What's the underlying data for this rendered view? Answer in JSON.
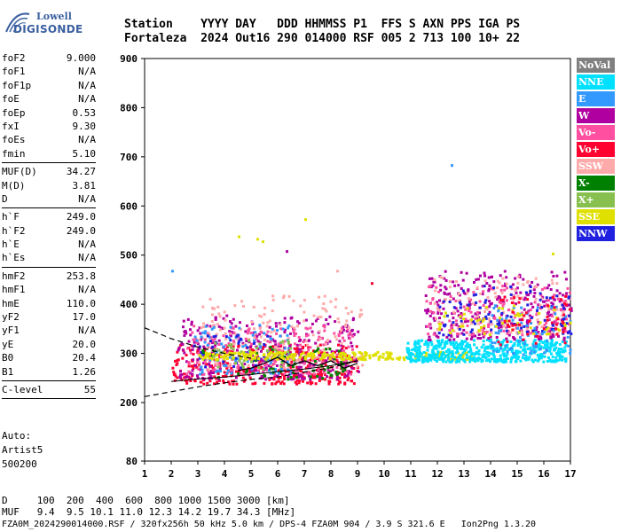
{
  "logo": {
    "line1": "Lowell",
    "line2": "DIGISONDE"
  },
  "header": {
    "row1": "Station    YYYY DAY   DDD HHMMSS P1  FFS S AXN PPS IGA PS",
    "row2": "Fortaleza  2024 Out16 290 014000 RSF 005 2 713 100 10+ 22"
  },
  "params": [
    {
      "label": "foF2",
      "value": "9.000"
    },
    {
      "label": "foF1",
      "value": "N/A"
    },
    {
      "label": "foF1p",
      "value": "N/A"
    },
    {
      "label": "foE",
      "value": "N/A"
    },
    {
      "label": "foEp",
      "value": "0.53"
    },
    {
      "label": "fxI",
      "value": "9.30"
    },
    {
      "label": "foEs",
      "value": "N/A"
    },
    {
      "label": "fmin",
      "value": "5.10"
    },
    {
      "sep": true
    },
    {
      "label": "MUF(D)",
      "value": "34.27"
    },
    {
      "label": "M(D)",
      "value": "3.81"
    },
    {
      "label": "D",
      "value": "N/A"
    },
    {
      "sep": true
    },
    {
      "label": "h`F",
      "value": "249.0"
    },
    {
      "label": "h`F2",
      "value": "249.0"
    },
    {
      "label": "h`E",
      "value": "N/A"
    },
    {
      "label": "h`Es",
      "value": "N/A"
    },
    {
      "sep": true
    },
    {
      "label": "hmF2",
      "value": "253.8"
    },
    {
      "label": "hmF1",
      "value": "N/A"
    },
    {
      "label": "hmE",
      "value": "110.0"
    },
    {
      "label": "yF2",
      "value": "17.0"
    },
    {
      "label": "yF1",
      "value": "N/A"
    },
    {
      "label": "yE",
      "value": "20.0"
    },
    {
      "label": "B0",
      "value": "20.4"
    },
    {
      "label": "B1",
      "value": "1.26"
    },
    {
      "sep": true
    },
    {
      "label": "C-level",
      "value": "55"
    },
    {
      "sep": true
    }
  ],
  "auto": {
    "l1": "Auto:",
    "l2": "Artist5",
    "l3": "500200"
  },
  "legend": [
    {
      "label": "NoVal",
      "color": "#808080"
    },
    {
      "label": "NNE",
      "color": "#00e0ff"
    },
    {
      "label": "E",
      "color": "#3399ff"
    },
    {
      "label": "W",
      "color": "#b000a0"
    },
    {
      "label": "Vo-",
      "color": "#ff4fa0"
    },
    {
      "label": "Vo+",
      "color": "#ff0030"
    },
    {
      "label": "SSW",
      "color": "#ffaaaa"
    },
    {
      "label": "X-",
      "color": "#008000"
    },
    {
      "label": "X+",
      "color": "#88c050"
    },
    {
      "label": "SSE",
      "color": "#e0e000"
    },
    {
      "label": "NNW",
      "color": "#2020e0"
    }
  ],
  "muf_table": {
    "row1": "D     100  200  400  600  800 1000 1500 3000 [km]",
    "row2": "MUF   9.4  9.5 10.1 11.0 12.3 14.2 19.7 34.3 [MHz]"
  },
  "footer": "FZA0M_2024290014000.RSF / 320fx256h 50 kHz 5.0 km / DPS-4 FZA0M 904 / 3.9 S 321.6 E   Ion2Png 1.3.20",
  "chart_data": {
    "type": "scatter",
    "title": "",
    "xlabel": "",
    "ylabel": "",
    "xlim": [
      1,
      17
    ],
    "ylim": [
      80,
      900
    ],
    "xticks": [
      "1",
      "2",
      "3",
      "4",
      "5",
      "6",
      "7",
      "8",
      "9",
      "10",
      "11",
      "12",
      "13",
      "14",
      "15",
      "16",
      "17"
    ],
    "yticks": [
      {
        "v": 900,
        "label": "900"
      },
      {
        "v": 800,
        "label": "800"
      },
      {
        "v": 700,
        "label": "700"
      },
      {
        "v": 600,
        "label": "600"
      },
      {
        "v": 500,
        "label": "500"
      },
      {
        "v": 400,
        "label": "400"
      },
      {
        "v": 300,
        "label": "300"
      },
      {
        "v": 200,
        "label": "200"
      },
      {
        "v": 80,
        "label": "80"
      }
    ],
    "clusters": [
      {
        "color": "#ff0030",
        "f": [
          2.0,
          9.0
        ],
        "h": [
          240,
          320
        ],
        "n": 380
      },
      {
        "color": "#b000a0",
        "f": [
          2.2,
          9.0
        ],
        "h": [
          250,
          380
        ],
        "n": 320
      },
      {
        "color": "#ff4fa0",
        "f": [
          2.5,
          8.8
        ],
        "h": [
          260,
          360
        ],
        "n": 220
      },
      {
        "color": "#ffaaaa",
        "f": [
          3.0,
          9.2
        ],
        "h": [
          270,
          420
        ],
        "n": 160
      },
      {
        "color": "#3399ff",
        "f": [
          2.8,
          6.5
        ],
        "h": [
          260,
          360
        ],
        "n": 90
      },
      {
        "color": "#2020e0",
        "f": [
          2.8,
          6.0
        ],
        "h": [
          270,
          340
        ],
        "n": 40
      },
      {
        "color": "#008000",
        "f": [
          3.0,
          8.5
        ],
        "h": [
          250,
          320
        ],
        "n": 60
      },
      {
        "color": "#88c050",
        "f": [
          3.5,
          6.5
        ],
        "h": [
          270,
          330
        ],
        "n": 50
      },
      {
        "color": "#e0e000",
        "f": [
          3.0,
          13.5
        ],
        "h": [
          290,
          305
        ],
        "n": 260
      },
      {
        "color": "#00e0ff",
        "f": [
          10.8,
          16.8
        ],
        "h": [
          285,
          330
        ],
        "n": 520
      },
      {
        "color": "#b000a0",
        "f": [
          11.5,
          17.0
        ],
        "h": [
          330,
          470
        ],
        "n": 280
      },
      {
        "color": "#ff4fa0",
        "f": [
          11.5,
          17.0
        ],
        "h": [
          340,
          440
        ],
        "n": 140
      },
      {
        "color": "#ffaaaa",
        "f": [
          11.8,
          17.0
        ],
        "h": [
          340,
          460
        ],
        "n": 110
      },
      {
        "color": "#2020e0",
        "f": [
          12.0,
          17.0
        ],
        "h": [
          340,
          440
        ],
        "n": 90
      },
      {
        "color": "#3399ff",
        "f": [
          14.0,
          17.0
        ],
        "h": [
          300,
          400
        ],
        "n": 70
      },
      {
        "color": "#e0e000",
        "f": [
          12.0,
          17.0
        ],
        "h": [
          340,
          400
        ],
        "n": 60
      },
      {
        "color": "#ff0030",
        "f": [
          14.0,
          17.0
        ],
        "h": [
          320,
          420
        ],
        "n": 50
      }
    ],
    "trace_solid": [
      [
        2.0,
        243
      ],
      [
        3.0,
        248
      ],
      [
        4.0,
        252
      ],
      [
        5.0,
        257
      ],
      [
        6.0,
        263
      ],
      [
        7.0,
        268
      ],
      [
        8.0,
        275
      ],
      [
        9.0,
        285
      ]
    ],
    "trace_dashed_low": [
      [
        1.0,
        212
      ],
      [
        2.0,
        222
      ],
      [
        3.0,
        232
      ],
      [
        4.0,
        240
      ],
      [
        5.0,
        247
      ],
      [
        6.0,
        252
      ],
      [
        7.0,
        262
      ],
      [
        8.0,
        271
      ],
      [
        9.0,
        285
      ]
    ],
    "trace_dashed_high": [
      [
        1.0,
        352
      ],
      [
        2.0,
        330
      ],
      [
        3.0,
        313
      ],
      [
        4.0,
        300
      ],
      [
        5.0,
        290
      ]
    ],
    "trace_wave": [
      [
        4.5,
        265
      ],
      [
        5.0,
        270
      ],
      [
        5.5,
        280
      ],
      [
        6.0,
        292
      ],
      [
        6.5,
        275
      ],
      [
        7.0,
        285
      ],
      [
        7.5,
        275
      ],
      [
        8.0,
        285
      ],
      [
        8.5,
        270
      ],
      [
        9.0,
        280
      ]
    ]
  }
}
